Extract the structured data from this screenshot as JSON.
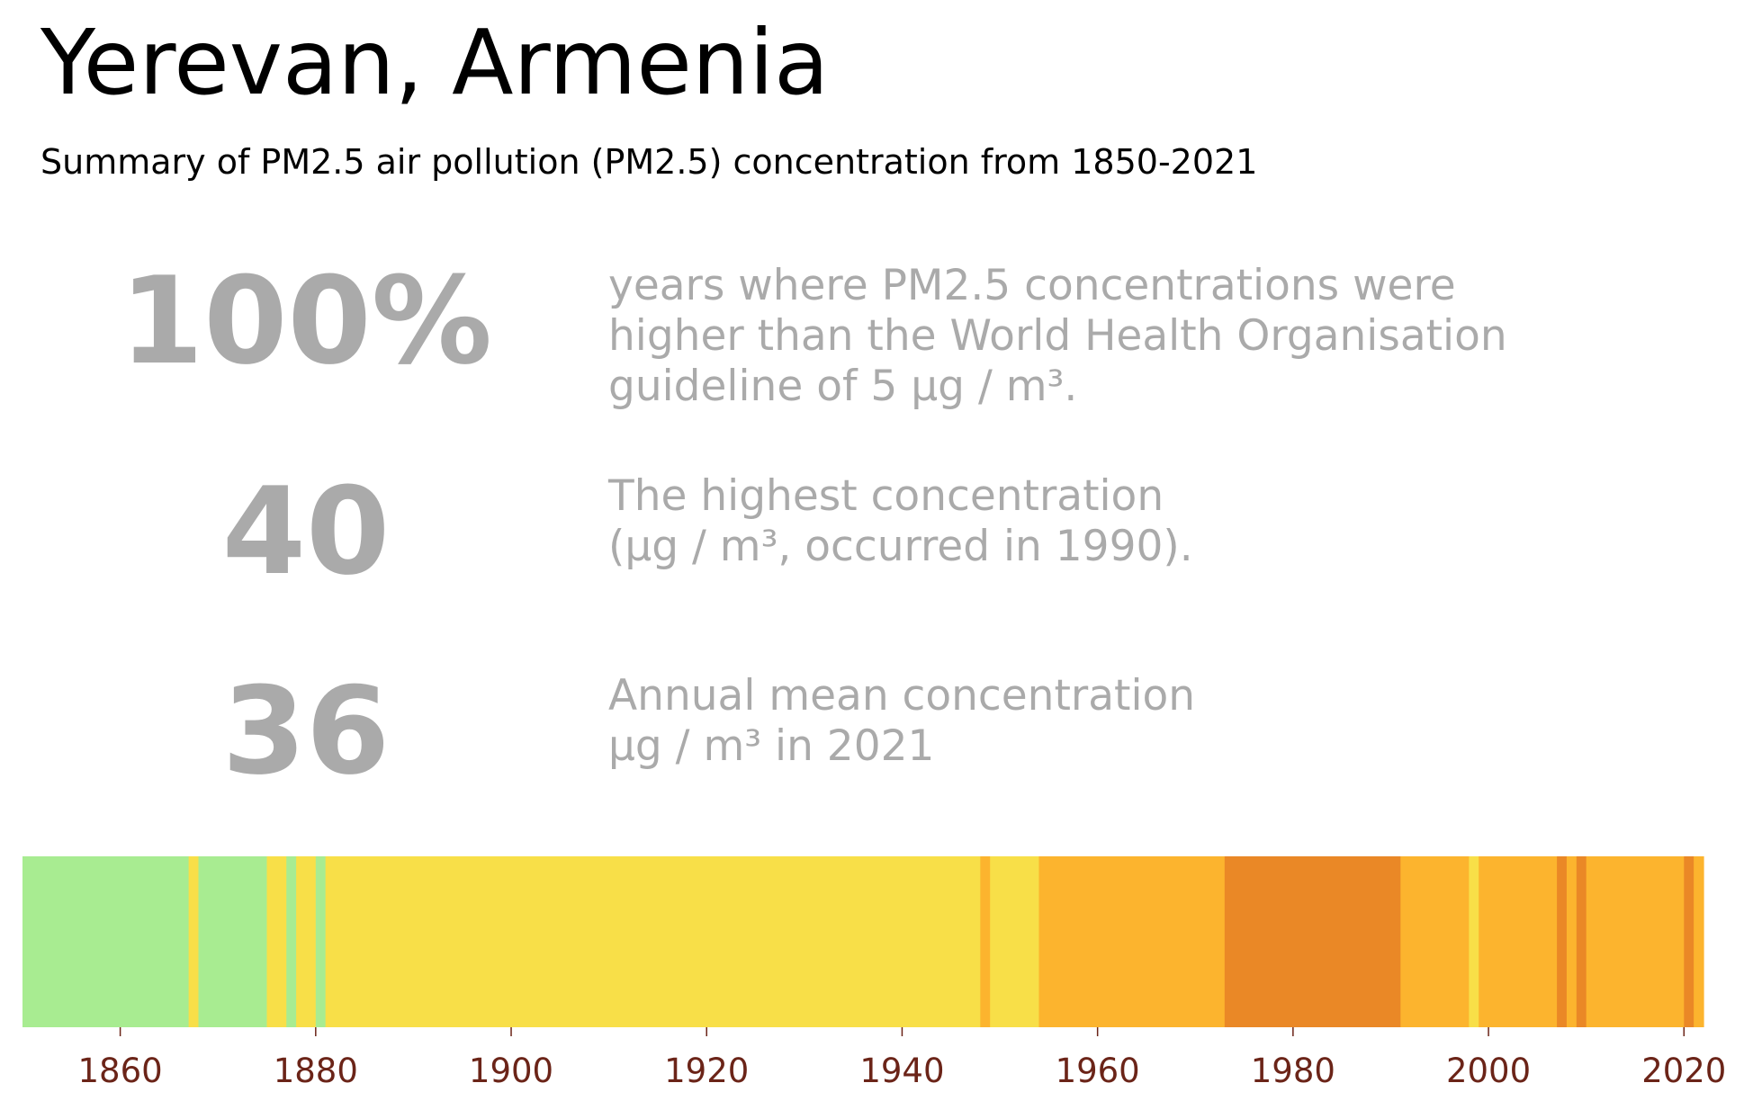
{
  "header": {
    "title": "Yerevan, Armenia",
    "subtitle": "Summary of PM2.5 air pollution (PM2.5) concentration from 1850-2021"
  },
  "stats": [
    {
      "value": "100%",
      "lines": [
        "years where PM2.5 concentrations were",
        "higher than the World Health Organisation",
        "guideline of 5 μg / m³."
      ]
    },
    {
      "value": "40",
      "lines": [
        "The highest concentration",
        "(μg / m³, occurred in 1990)."
      ]
    },
    {
      "value": "36",
      "lines": [
        "Annual mean concentration",
        "μg / m³ in 2021"
      ]
    }
  ],
  "chart_data": {
    "type": "heatmap",
    "xlim": [
      1850,
      2022
    ],
    "ticks": [
      "1860",
      "1880",
      "1900",
      "1920",
      "1940",
      "1960",
      "1980",
      "2000",
      "2020"
    ],
    "colors": {
      "green": "#a8ec91",
      "yellow": "#f8df48",
      "orange": "#fcb42e",
      "dark_orange": "#ea8826"
    },
    "segments": [
      {
        "start": 1850,
        "end": 1867,
        "color": "green"
      },
      {
        "start": 1867,
        "end": 1868,
        "color": "yellow"
      },
      {
        "start": 1868,
        "end": 1875,
        "color": "green"
      },
      {
        "start": 1875,
        "end": 1877,
        "color": "yellow"
      },
      {
        "start": 1877,
        "end": 1878,
        "color": "green"
      },
      {
        "start": 1878,
        "end": 1880,
        "color": "yellow"
      },
      {
        "start": 1880,
        "end": 1881,
        "color": "green"
      },
      {
        "start": 1881,
        "end": 1948,
        "color": "yellow"
      },
      {
        "start": 1948,
        "end": 1949,
        "color": "orange"
      },
      {
        "start": 1949,
        "end": 1954,
        "color": "yellow"
      },
      {
        "start": 1954,
        "end": 1973,
        "color": "orange"
      },
      {
        "start": 1973,
        "end": 1991,
        "color": "dark_orange"
      },
      {
        "start": 1991,
        "end": 1998,
        "color": "orange"
      },
      {
        "start": 1998,
        "end": 1999,
        "color": "yellow"
      },
      {
        "start": 1999,
        "end": 2007,
        "color": "orange"
      },
      {
        "start": 2007,
        "end": 2008,
        "color": "dark_orange"
      },
      {
        "start": 2008,
        "end": 2009,
        "color": "orange"
      },
      {
        "start": 2009,
        "end": 2010,
        "color": "dark_orange"
      },
      {
        "start": 2010,
        "end": 2020,
        "color": "orange"
      },
      {
        "start": 2020,
        "end": 2021,
        "color": "dark_orange"
      },
      {
        "start": 2021,
        "end": 2022,
        "color": "orange"
      }
    ]
  }
}
